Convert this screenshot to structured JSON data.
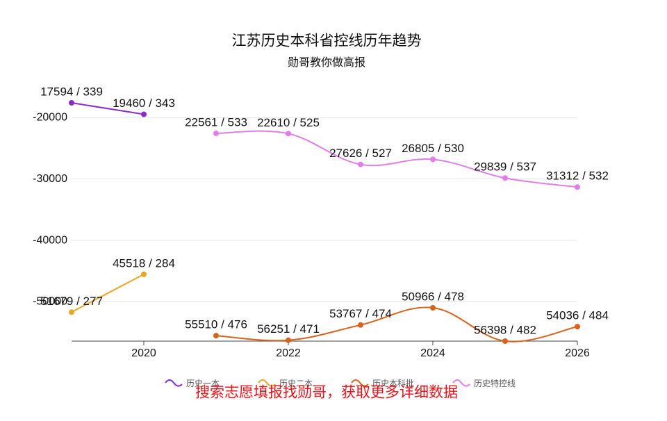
{
  "chart_data": {
    "type": "line",
    "title": "江苏历史本科省控线历年趋势",
    "subtitle": "勋哥教你做高报",
    "annotation": "搜索志愿填报找勋哥，获取更多详细数据",
    "x": [
      2019,
      2020,
      2021,
      2022,
      2023,
      2024,
      2025,
      2026
    ],
    "xlim": [
      2019,
      2026
    ],
    "xticks": [
      2020,
      2022,
      2024,
      2026
    ],
    "ylim": [
      -56398,
      -17594
    ],
    "yticks": [
      -50000,
      -40000,
      -30000,
      -20000
    ],
    "grid": true,
    "legend": "bottom",
    "series": [
      {
        "name": "历史一本",
        "color": "#8a2bc9",
        "values": [
          -17594,
          -19460,
          null,
          null,
          null,
          null,
          null,
          null
        ],
        "value_labels": [
          "17594 / 339",
          "19460 / 343",
          null,
          null,
          null,
          null,
          null,
          null
        ]
      },
      {
        "name": "历史二本",
        "color": "#e8a623",
        "values": [
          -51679,
          -45518,
          null,
          null,
          null,
          null,
          null,
          null
        ],
        "value_labels": [
          "51679 / 277",
          "45518 / 284",
          null,
          null,
          null,
          null,
          null,
          null
        ]
      },
      {
        "name": "历史本科批",
        "color": "#d8621c",
        "values": [
          null,
          null,
          -55510,
          -56251,
          -53767,
          -50966,
          -56398,
          -54036
        ],
        "value_labels": [
          null,
          null,
          "55510 / 476",
          "56251 / 471",
          "53767 / 474",
          "50966 / 478",
          "56398 / 482",
          "54036 / 484"
        ]
      },
      {
        "name": "历史特控线",
        "color": "#e07de8",
        "values": [
          null,
          null,
          -22561,
          -22610,
          -27626,
          -26805,
          -29839,
          -31312
        ],
        "value_labels": [
          null,
          null,
          "22561 / 533",
          "22610 / 525",
          "27626 / 527",
          "26805 / 530",
          "29839 / 537",
          "31312 / 532"
        ]
      }
    ]
  }
}
